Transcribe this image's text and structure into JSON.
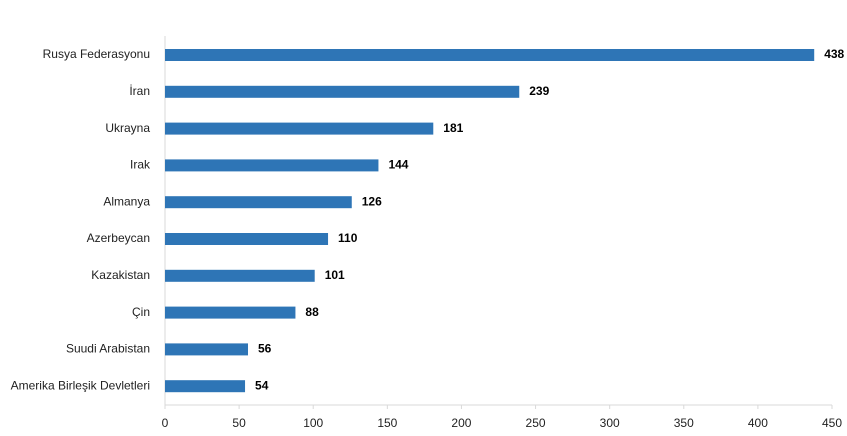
{
  "chart_data": {
    "type": "hbar",
    "categories": [
      "Rusya Federasyonu",
      "İran",
      "Ukrayna",
      "Irak",
      "Almanya",
      "Azerbeycan",
      "Kazakistan",
      "Çin",
      "Suudi Arabistan",
      "Amerika Birleşik Devletleri"
    ],
    "values": [
      438,
      239,
      181,
      144,
      126,
      110,
      101,
      88,
      56,
      54
    ],
    "color": "#2e75b6",
    "xlim": [
      0,
      450
    ],
    "xticks": [
      0,
      50,
      100,
      150,
      200,
      250,
      300,
      350,
      400,
      450
    ]
  }
}
